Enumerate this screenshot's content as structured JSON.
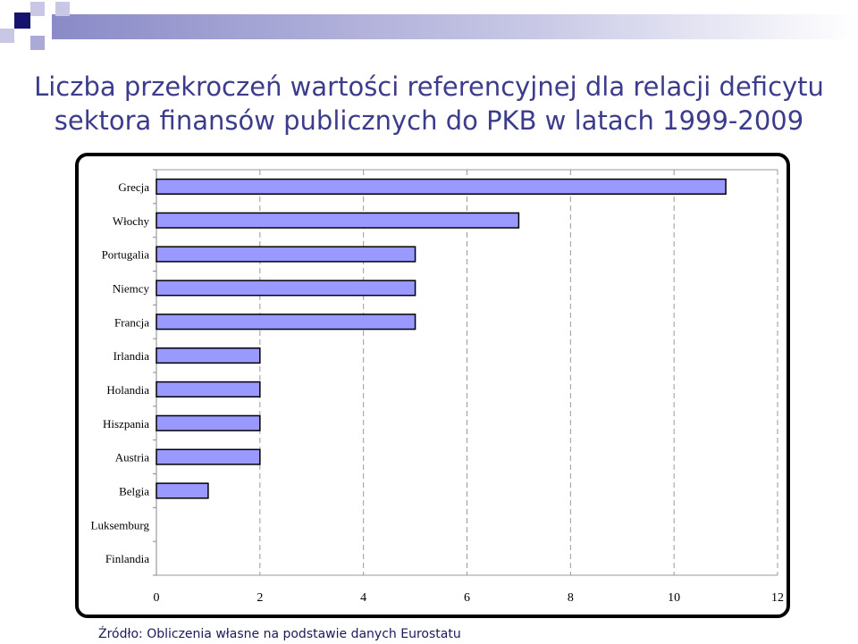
{
  "colors": {
    "bar_fill": "#9999ff",
    "title": "#3c3c8c",
    "grid": "#999999",
    "bar_stroke": "#000000"
  },
  "title_lines": [
    "Liczba przekroczeń wartości referencyjnej dla relacji deficytu",
    "sektora finansów publicznych do PKB w latach 1999-2009"
  ],
  "source": "Źródło: Obliczenia własne na podstawie danych Eurostatu",
  "chart_data": {
    "type": "bar",
    "orientation": "horizontal",
    "categories": [
      "Grecja",
      "Włochy",
      "Portugalia",
      "Niemcy",
      "Francja",
      "Irlandia",
      "Holandia",
      "Hiszpania",
      "Austria",
      "Belgia",
      "Luksemburg",
      "Finlandia"
    ],
    "values": [
      11,
      7,
      5,
      5,
      5,
      2,
      2,
      2,
      2,
      1,
      0,
      0
    ],
    "xlim": [
      0,
      12
    ],
    "xticks": [
      0,
      2,
      4,
      6,
      8,
      10,
      12
    ],
    "grid": "vertical dashed",
    "title": "",
    "xlabel": "",
    "ylabel": ""
  }
}
